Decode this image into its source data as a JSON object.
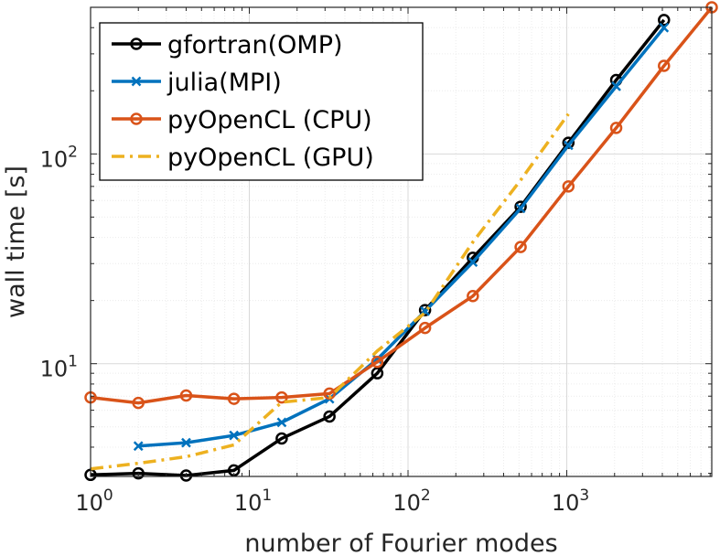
{
  "chart_data": {
    "type": "line",
    "title": "",
    "xlabel": "number of Fourier modes",
    "ylabel": "wall time [s]",
    "x_scale": "log",
    "y_scale": "log",
    "xlim": [
      1,
      8192
    ],
    "ylim": [
      2.9,
      500
    ],
    "x_ticks": [
      {
        "value": 1,
        "base": "10",
        "exp": "0"
      },
      {
        "value": 10,
        "base": "10",
        "exp": "1"
      },
      {
        "value": 100,
        "base": "10",
        "exp": "2"
      },
      {
        "value": 1000,
        "base": "10",
        "exp": "3"
      }
    ],
    "y_ticks": [
      {
        "value": 10,
        "base": "10",
        "exp": "1"
      },
      {
        "value": 100,
        "base": "10",
        "exp": "2"
      }
    ],
    "grid": true,
    "legend_position": "top-left",
    "series": [
      {
        "name": "gfortran(OMP)",
        "color": "#000000",
        "marker": "circle",
        "line_style": "solid",
        "x": [
          1,
          2,
          4,
          8,
          16,
          32,
          64,
          128,
          256,
          512,
          1024,
          2048,
          4096
        ],
        "y": [
          2.95,
          3.0,
          2.93,
          3.1,
          4.4,
          5.6,
          9.0,
          18.0,
          32.0,
          56.0,
          113.0,
          225.0,
          435.0
        ]
      },
      {
        "name": "julia(MPI)",
        "color": "#0072BD",
        "marker": "x",
        "line_style": "solid",
        "x": [
          2,
          4,
          8,
          16,
          32,
          64,
          128,
          256,
          512,
          1024,
          2048,
          4096
        ],
        "y": [
          4.05,
          4.2,
          4.55,
          5.25,
          6.8,
          10.5,
          17.8,
          30.5,
          55.0,
          110.0,
          210.0,
          400.0
        ]
      },
      {
        "name": "pyOpenCL (CPU)",
        "color": "#D95319",
        "marker": "circle",
        "line_style": "solid",
        "x": [
          1,
          2,
          4,
          8,
          16,
          32,
          64,
          128,
          256,
          512,
          1024,
          2048,
          4096,
          8192
        ],
        "y": [
          6.9,
          6.5,
          7.05,
          6.8,
          6.9,
          7.2,
          10.2,
          14.8,
          21.0,
          36.0,
          70.0,
          133.0,
          263.0,
          500.0
        ]
      },
      {
        "name": "pyOpenCL (GPU)",
        "color": "#EDB120",
        "marker": "none",
        "line_style": "dashdot",
        "x": [
          1,
          2,
          4,
          8,
          16,
          32,
          64,
          128,
          256,
          512,
          1024
        ],
        "y": [
          3.15,
          3.35,
          3.6,
          4.1,
          6.55,
          6.9,
          11.5,
          17.5,
          38.0,
          75.0,
          155.0
        ]
      }
    ]
  }
}
